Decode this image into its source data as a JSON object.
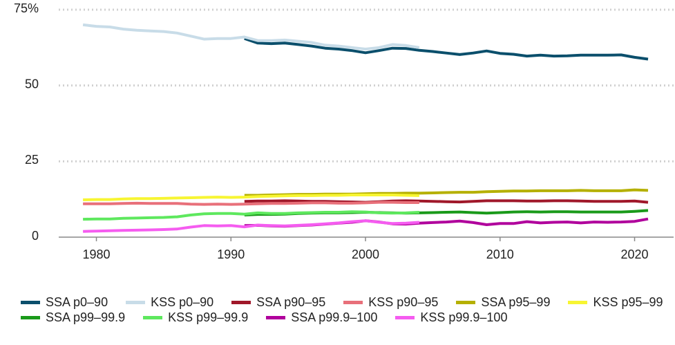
{
  "chart_data": {
    "type": "line",
    "xlim": [
      1977.2,
      2022.9
    ],
    "xticks": [
      1980,
      1990,
      2000,
      2010,
      2020
    ],
    "ylim": [
      0,
      75
    ],
    "yticks": [
      0,
      25,
      50,
      {
        "value": 75,
        "label": "75%"
      }
    ],
    "grid": true,
    "legend": "bottom",
    "series": [
      {
        "name": "SSA p0–90",
        "color": "#0b4f6c",
        "x": [
          1991,
          1992,
          1993,
          1994,
          1995,
          1996,
          1997,
          1998,
          1999,
          2000,
          2001,
          2002,
          2003,
          2004,
          2005,
          2006,
          2007,
          2008,
          2009,
          2010,
          2011,
          2012,
          2013,
          2014,
          2015,
          2016,
          2017,
          2018,
          2019,
          2020,
          2021
        ],
        "values": [
          65.5,
          64.0,
          63.8,
          64.0,
          63.5,
          63.0,
          62.3,
          62.0,
          61.5,
          60.8,
          61.5,
          62.3,
          62.2,
          61.6,
          61.2,
          60.7,
          60.2,
          60.7,
          61.4,
          60.6,
          60.3,
          59.7,
          60.0,
          59.7,
          59.8,
          60.0,
          60.0,
          60.0,
          60.1,
          59.3,
          58.7
        ]
      },
      {
        "name": "KSS p0–90",
        "color": "#c8dce8",
        "x": [
          1979,
          1980,
          1981,
          1982,
          1983,
          1984,
          1985,
          1986,
          1987,
          1988,
          1989,
          1990,
          1991,
          1992,
          1993,
          1994,
          1995,
          1996,
          1997,
          1998,
          1999,
          2000,
          2001,
          2002,
          2003,
          2004
        ],
        "values": [
          70.0,
          69.5,
          69.3,
          68.6,
          68.2,
          68.0,
          67.8,
          67.3,
          66.3,
          65.3,
          65.5,
          65.5,
          66.0,
          64.8,
          64.8,
          65.0,
          64.6,
          64.2,
          63.3,
          63.0,
          62.5,
          62.0,
          62.5,
          63.5,
          63.2,
          62.5
        ]
      },
      {
        "name": "SSA p90–95",
        "color": "#a0182a",
        "x": [
          1991,
          1992,
          1993,
          1994,
          1995,
          1996,
          1997,
          1998,
          1999,
          2000,
          2001,
          2002,
          2003,
          2004,
          2005,
          2006,
          2007,
          2008,
          2009,
          2010,
          2011,
          2012,
          2013,
          2014,
          2015,
          2016,
          2017,
          2018,
          2019,
          2020,
          2021
        ],
        "values": [
          11.8,
          11.9,
          11.9,
          12.0,
          11.9,
          11.8,
          11.8,
          11.7,
          11.6,
          11.5,
          11.7,
          11.9,
          12.0,
          11.9,
          11.8,
          11.7,
          11.6,
          11.8,
          12.0,
          12.0,
          12.0,
          11.9,
          11.9,
          12.0,
          12.0,
          11.9,
          11.8,
          11.8,
          11.8,
          11.9,
          11.5
        ]
      },
      {
        "name": "KSS p90–95",
        "color": "#e8707a",
        "x": [
          1979,
          1980,
          1981,
          1982,
          1983,
          1984,
          1985,
          1986,
          1987,
          1988,
          1989,
          1990,
          1991,
          1992,
          1993,
          1994,
          1995,
          1996,
          1997,
          1998,
          1999,
          2000,
          2001,
          2002,
          2003,
          2004
        ],
        "values": [
          11.0,
          11.0,
          11.0,
          11.1,
          11.2,
          11.1,
          11.1,
          11.1,
          10.9,
          10.8,
          10.9,
          10.8,
          10.9,
          11.0,
          11.1,
          11.1,
          11.2,
          11.3,
          11.3,
          11.2,
          11.2,
          11.3,
          11.5,
          11.5,
          11.4,
          11.4
        ]
      },
      {
        "name": "SSA p95–99",
        "color": "#b5b000",
        "x": [
          1991,
          1992,
          1993,
          1994,
          1995,
          1996,
          1997,
          1998,
          1999,
          2000,
          2001,
          2002,
          2003,
          2004,
          2005,
          2006,
          2007,
          2008,
          2009,
          2010,
          2011,
          2012,
          2013,
          2014,
          2015,
          2016,
          2017,
          2018,
          2019,
          2020,
          2021
        ],
        "values": [
          13.8,
          13.8,
          13.9,
          14.0,
          14.1,
          14.1,
          14.2,
          14.2,
          14.2,
          14.3,
          14.4,
          14.4,
          14.5,
          14.5,
          14.6,
          14.7,
          14.8,
          14.8,
          15.0,
          15.1,
          15.2,
          15.2,
          15.3,
          15.3,
          15.3,
          15.4,
          15.3,
          15.3,
          15.3,
          15.6,
          15.4
        ]
      },
      {
        "name": "KSS p95–99",
        "color": "#f7f532",
        "x": [
          1979,
          1980,
          1981,
          1982,
          1983,
          1984,
          1985,
          1986,
          1987,
          1988,
          1989,
          1990,
          1991,
          1992,
          1993,
          1994,
          1995,
          1996,
          1997,
          1998,
          1999,
          2000,
          2001,
          2002,
          2003,
          2004
        ],
        "values": [
          12.3,
          12.4,
          12.4,
          12.6,
          12.7,
          12.7,
          12.8,
          12.9,
          13.0,
          13.1,
          13.2,
          13.1,
          13.2,
          13.4,
          13.5,
          13.6,
          13.7,
          13.7,
          13.8,
          13.8,
          13.9,
          13.9,
          13.9,
          13.9,
          13.8,
          13.7
        ]
      },
      {
        "name": "SSA p99–99.9",
        "color": "#1a9a1a",
        "x": [
          1991,
          1992,
          1993,
          1994,
          1995,
          1996,
          1997,
          1998,
          1999,
          2000,
          2001,
          2002,
          2003,
          2004,
          2005,
          2006,
          2007,
          2008,
          2009,
          2010,
          2011,
          2012,
          2013,
          2014,
          2015,
          2016,
          2017,
          2018,
          2019,
          2020,
          2021
        ],
        "values": [
          7.3,
          7.5,
          7.5,
          7.6,
          7.8,
          7.9,
          8.0,
          8.0,
          8.1,
          8.2,
          8.1,
          8.0,
          7.9,
          8.0,
          8.1,
          8.2,
          8.3,
          8.1,
          7.9,
          8.1,
          8.3,
          8.4,
          8.3,
          8.4,
          8.4,
          8.3,
          8.3,
          8.3,
          8.3,
          8.5,
          8.8
        ]
      },
      {
        "name": "KSS p99–99.9",
        "color": "#5ee85e",
        "x": [
          1979,
          1980,
          1981,
          1982,
          1983,
          1984,
          1985,
          1986,
          1987,
          1988,
          1989,
          1990,
          1991,
          1992,
          1993,
          1994,
          1995,
          1996,
          1997,
          1998,
          1999,
          2000,
          2001,
          2002,
          2003,
          2004
        ],
        "values": [
          5.9,
          6.0,
          6.0,
          6.2,
          6.3,
          6.4,
          6.5,
          6.7,
          7.3,
          7.7,
          7.8,
          7.8,
          7.6,
          8.0,
          7.8,
          7.8,
          8.0,
          8.1,
          8.2,
          8.2,
          8.4,
          8.3,
          8.0,
          7.9,
          8.0,
          8.2
        ]
      },
      {
        "name": "SSA p99.9–100",
        "color": "#b0009c",
        "x": [
          1991,
          1992,
          1993,
          1994,
          1995,
          1996,
          1997,
          1998,
          1999,
          2000,
          2001,
          2002,
          2003,
          2004,
          2005,
          2006,
          2007,
          2008,
          2009,
          2010,
          2011,
          2012,
          2013,
          2014,
          2015,
          2016,
          2017,
          2018,
          2019,
          2020,
          2021
        ],
        "values": [
          3.8,
          3.9,
          3.7,
          3.6,
          3.8,
          4.0,
          4.3,
          4.6,
          4.9,
          5.4,
          5.0,
          4.4,
          4.3,
          4.6,
          4.8,
          5.0,
          5.3,
          4.8,
          4.1,
          4.5,
          4.5,
          5.1,
          4.7,
          4.9,
          5.0,
          4.7,
          5.0,
          4.9,
          5.0,
          5.2,
          6.0
        ]
      },
      {
        "name": "KSS p99.9–100",
        "color": "#f55cf0",
        "x": [
          1979,
          1980,
          1981,
          1982,
          1983,
          1984,
          1985,
          1986,
          1987,
          1988,
          1989,
          1990,
          1991,
          1992,
          1993,
          1994,
          1995,
          1996,
          1997,
          1998,
          1999,
          2000,
          2001,
          2002,
          2003,
          2004
        ],
        "values": [
          1.9,
          2.0,
          2.1,
          2.2,
          2.3,
          2.4,
          2.5,
          2.7,
          3.3,
          3.8,
          3.7,
          3.8,
          3.4,
          4.0,
          3.8,
          3.7,
          3.9,
          4.1,
          4.4,
          4.7,
          5.1,
          5.4,
          4.9,
          4.5,
          4.6,
          4.9
        ]
      }
    ]
  }
}
